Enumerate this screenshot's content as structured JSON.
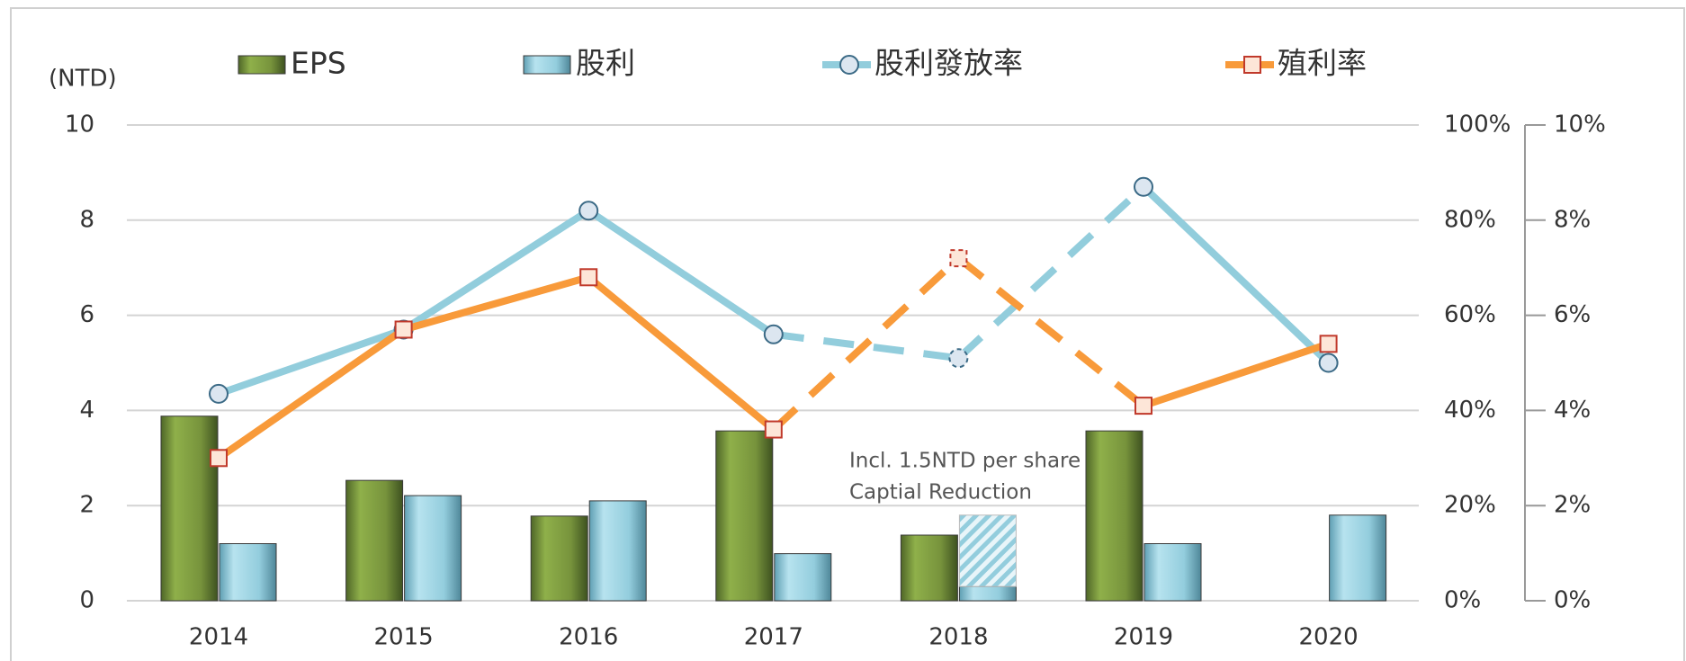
{
  "chart_data": {
    "type": "bar_line",
    "y_label": "(NTD)",
    "categories": [
      "2014",
      "2015",
      "2016",
      "2017",
      "2018",
      "2019",
      "2020"
    ],
    "series": [
      {
        "name": "EPS",
        "type": "bar",
        "color": "#77933c",
        "values": [
          3.88,
          2.53,
          1.78,
          3.57,
          1.38,
          3.57,
          null
        ]
      },
      {
        "name": "股利",
        "type": "bar",
        "color": "#93cddd",
        "values": [
          1.2,
          2.21,
          2.1,
          0.99,
          0.3,
          1.2,
          1.8
        ],
        "capital_reduction_values": [
          null,
          null,
          null,
          null,
          1.5,
          null,
          null
        ]
      },
      {
        "name": "股利發放率",
        "type": "line",
        "axis": "y2",
        "color": "#92cddc",
        "marker": "circle",
        "dashed_segments": [
          3,
          4
        ],
        "values": [
          43.5,
          57,
          82,
          56,
          51,
          87,
          50
        ]
      },
      {
        "name": "殖利率",
        "type": "line",
        "axis": "y3",
        "color": "#f89a3a",
        "marker": "square",
        "dashed_segments": [
          3,
          4
        ],
        "values": [
          3.0,
          5.7,
          6.8,
          3.6,
          7.2,
          4.1,
          5.4
        ]
      }
    ],
    "annotation": [
      "Incl. 1.5NTD per share",
      "Captial Reduction"
    ],
    "ylim": [
      0,
      10
    ],
    "yticks": [
      0,
      2,
      4,
      6,
      8,
      10
    ],
    "y2lim": [
      0,
      100
    ],
    "y2ticks": [
      {
        "value": 0,
        "label": "0%"
      },
      {
        "value": 20,
        "label": "20%"
      },
      {
        "value": 40,
        "label": "40%"
      },
      {
        "value": 60,
        "label": "60%"
      },
      {
        "value": 80,
        "label": "80%"
      },
      {
        "value": 100,
        "label": "100%"
      }
    ],
    "y3lim": [
      0,
      10
    ],
    "y3ticks": [
      {
        "value": 0,
        "label": "0%"
      },
      {
        "value": 2,
        "label": "2%"
      },
      {
        "value": 4,
        "label": "4%"
      },
      {
        "value": 6,
        "label": "6%"
      },
      {
        "value": 8,
        "label": "8%"
      },
      {
        "value": 10,
        "label": "10%"
      }
    ],
    "grid": true
  }
}
